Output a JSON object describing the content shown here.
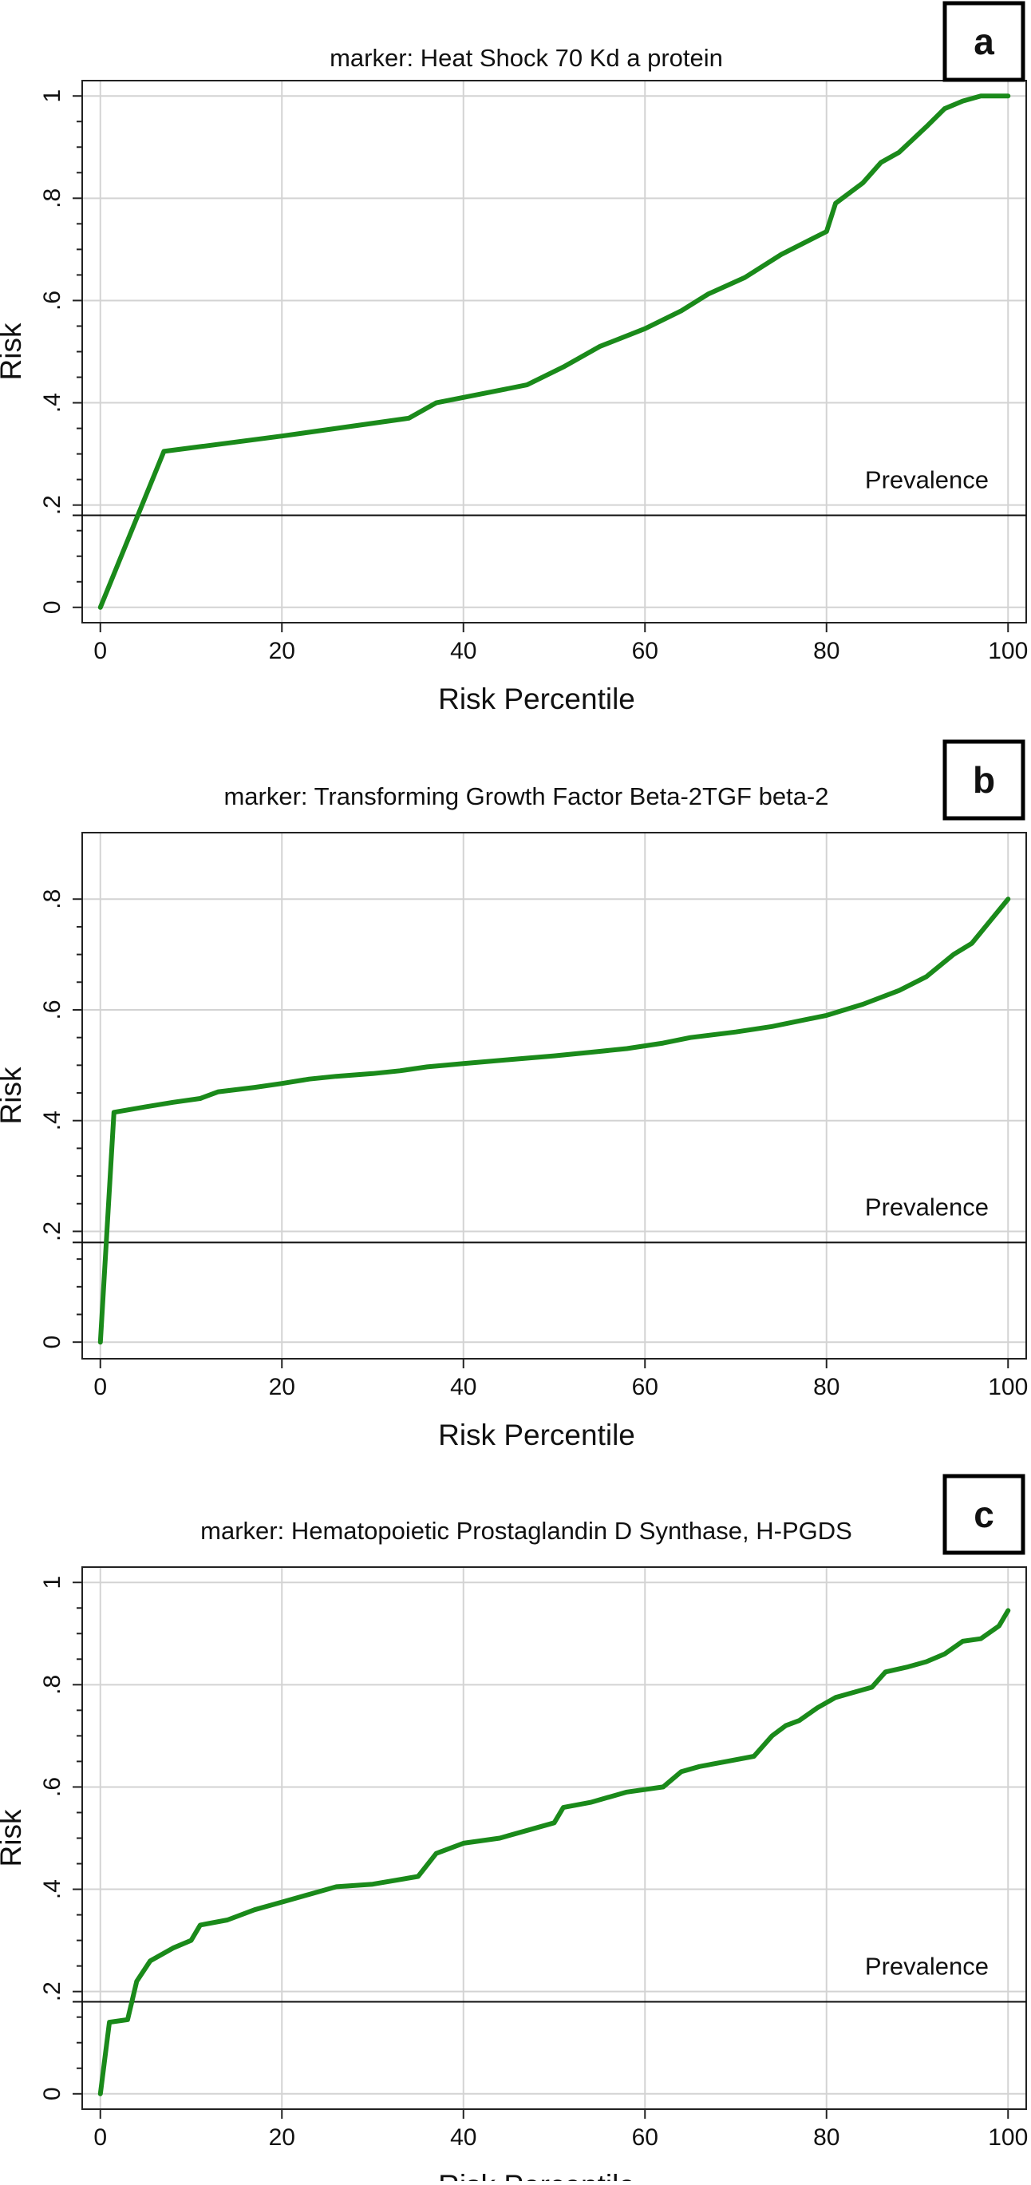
{
  "chart_data": [
    {
      "type": "line",
      "panel_label": "a",
      "title": "marker: Heat Shock 70 Kd a protein",
      "xlabel": "Risk Percentile",
      "ylabel": "Risk",
      "xlim": [
        -2,
        102
      ],
      "ylim": [
        -0.03,
        1.03
      ],
      "xticks": [
        0,
        20,
        40,
        60,
        80,
        100
      ],
      "xtick_labels": [
        "0",
        "20",
        "40",
        "60",
        "80",
        "100"
      ],
      "yticks": [
        0,
        0.2,
        0.4,
        0.6,
        0.8,
        1
      ],
      "ytick_labels": [
        "0",
        ".2",
        ".4",
        ".6",
        ".8",
        "1"
      ],
      "grid": true,
      "line_color": "#1a8a1a",
      "reference_line": {
        "y": 0.18,
        "label": "Prevalence"
      },
      "series": [
        {
          "x": [
            0,
            7,
            20,
            34,
            37,
            47,
            51,
            55,
            60,
            64,
            67,
            71,
            75,
            80,
            81,
            84,
            86,
            88,
            91,
            93,
            95,
            97,
            100
          ],
          "y": [
            0.0,
            0.305,
            0.335,
            0.37,
            0.4,
            0.435,
            0.47,
            0.51,
            0.545,
            0.58,
            0.613,
            0.645,
            0.69,
            0.735,
            0.79,
            0.83,
            0.87,
            0.89,
            0.94,
            0.975,
            0.99,
            1.0,
            1.0
          ]
        }
      ]
    },
    {
      "type": "line",
      "panel_label": "b",
      "title": "marker: Transforming Growth Factor Beta-2TGF beta-2",
      "xlabel": "Risk Percentile",
      "ylabel": "Risk",
      "xlim": [
        -2,
        102
      ],
      "ylim": [
        -0.03,
        0.92
      ],
      "xticks": [
        0,
        20,
        40,
        60,
        80,
        100
      ],
      "xtick_labels": [
        "0",
        "20",
        "40",
        "60",
        "80",
        "100"
      ],
      "yticks": [
        0,
        0.2,
        0.4,
        0.6,
        0.8
      ],
      "ytick_labels": [
        "0",
        ".2",
        ".4",
        ".6",
        ".8"
      ],
      "grid": true,
      "line_color": "#1a8a1a",
      "reference_line": {
        "y": 0.18,
        "label": "Prevalence"
      },
      "series": [
        {
          "x": [
            0,
            1.5,
            5,
            8,
            11,
            13,
            17,
            20,
            23,
            26,
            30,
            33,
            36,
            40,
            45,
            50,
            55,
            58,
            62,
            65,
            70,
            74,
            80,
            84,
            88,
            91,
            94,
            96,
            98,
            100
          ],
          "y": [
            0.0,
            0.415,
            0.425,
            0.433,
            0.44,
            0.452,
            0.46,
            0.467,
            0.475,
            0.48,
            0.485,
            0.49,
            0.497,
            0.503,
            0.51,
            0.517,
            0.525,
            0.53,
            0.54,
            0.55,
            0.56,
            0.57,
            0.59,
            0.61,
            0.635,
            0.66,
            0.7,
            0.72,
            0.76,
            0.8
          ]
        }
      ]
    },
    {
      "type": "line",
      "panel_label": "c",
      "title": "marker: Hematopoietic Prostaglandin D Synthase, H-PGDS",
      "xlabel": "Risk Percentile",
      "ylabel": "Risk",
      "xlim": [
        -2,
        102
      ],
      "ylim": [
        -0.03,
        1.03
      ],
      "xticks": [
        0,
        20,
        40,
        60,
        80,
        100
      ],
      "xtick_labels": [
        "0",
        "20",
        "40",
        "60",
        "80",
        "100"
      ],
      "yticks": [
        0,
        0.2,
        0.4,
        0.6,
        0.8,
        1
      ],
      "ytick_labels": [
        "0",
        ".2",
        ".4",
        ".6",
        ".8",
        "1"
      ],
      "grid": true,
      "line_color": "#1a8a1a",
      "reference_line": {
        "y": 0.18,
        "label": "Prevalence"
      },
      "series": [
        {
          "x": [
            0,
            1,
            3,
            4,
            5.5,
            8,
            10,
            11,
            14,
            17,
            20,
            23,
            26,
            30,
            35,
            37,
            40,
            44,
            48,
            50,
            51,
            54,
            58,
            62,
            64,
            66,
            69,
            72,
            74,
            75.5,
            77,
            79,
            81,
            83,
            85,
            86.5,
            89,
            91,
            93,
            95,
            97,
            99,
            100
          ],
          "y": [
            0.0,
            0.14,
            0.145,
            0.22,
            0.26,
            0.285,
            0.3,
            0.33,
            0.34,
            0.36,
            0.375,
            0.39,
            0.405,
            0.41,
            0.425,
            0.47,
            0.49,
            0.5,
            0.52,
            0.53,
            0.56,
            0.57,
            0.59,
            0.6,
            0.63,
            0.64,
            0.65,
            0.66,
            0.7,
            0.72,
            0.73,
            0.755,
            0.775,
            0.785,
            0.795,
            0.825,
            0.835,
            0.845,
            0.86,
            0.885,
            0.89,
            0.915,
            0.945
          ]
        }
      ]
    }
  ]
}
